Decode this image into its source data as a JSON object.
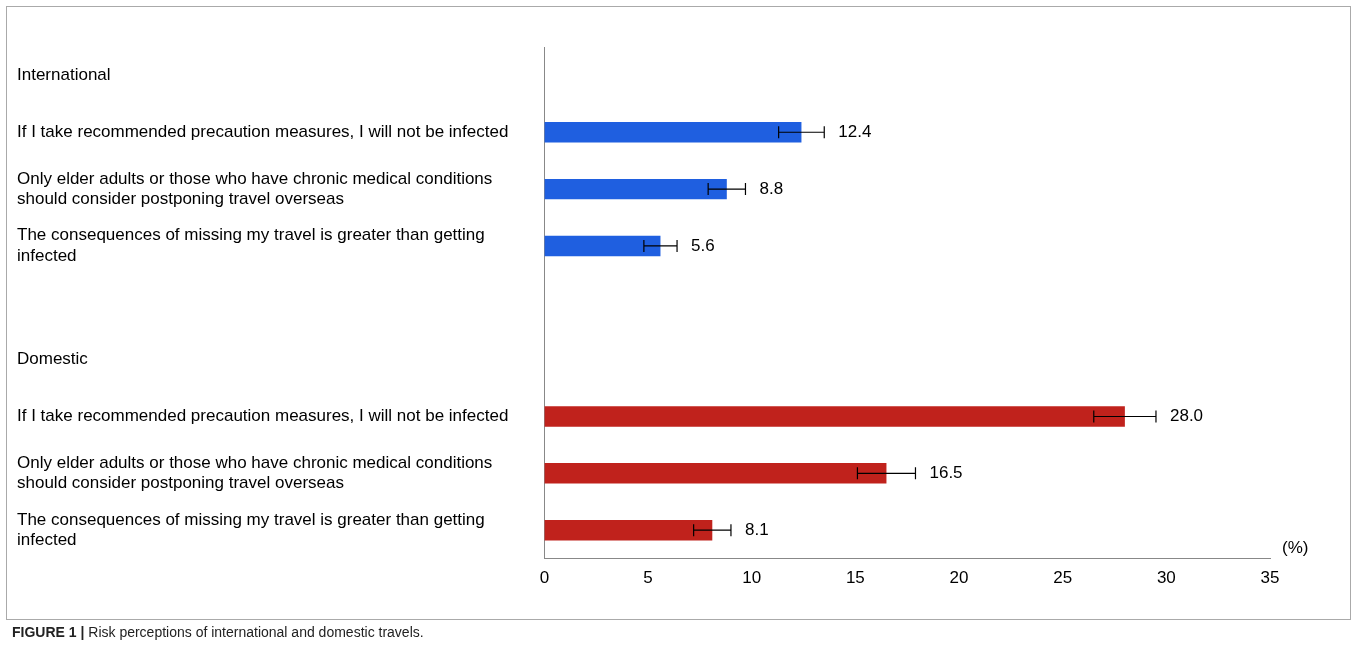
{
  "chart_data": {
    "type": "bar",
    "orientation": "horizontal",
    "categories": [
      "International",
      "If I take recommended precaution measures, I will not be infected",
      "Only elder adults or those who have chronic medical conditions should consider postponing travel overseas",
      "The consequences of missing my travel is greater than getting infected",
      null,
      "Domestic",
      "If I take recommended precaution measures, I will not be infected",
      "Only elder adults or those who have chronic medical conditions should consider postponing travel overseas",
      "The consequences of missing my travel is greater than getting infected"
    ],
    "values": [
      null,
      12.4,
      8.8,
      5.6,
      null,
      null,
      28.0,
      16.5,
      8.1
    ],
    "value_labels": [
      null,
      "12.4",
      "8.8",
      "5.6",
      null,
      null,
      "28.0",
      "16.5",
      "8.1"
    ],
    "errors": [
      null,
      1.1,
      0.9,
      0.8,
      null,
      null,
      1.5,
      1.4,
      0.9
    ],
    "colors": [
      "#1f5fe0",
      "#1f5fe0",
      "#1f5fe0",
      "#1f5fe0",
      "#1f5fe0",
      "#c0221c",
      "#c0221c",
      "#c0221c",
      "#c0221c"
    ],
    "xlabel": "(%)",
    "xlim": [
      0,
      35
    ],
    "xticks": [
      0,
      5,
      10,
      15,
      20,
      25,
      30,
      35
    ],
    "grid": false,
    "legend": false,
    "annotations": [
      "FIGURE 1 | Risk perceptions of international and domestic travels."
    ]
  }
}
